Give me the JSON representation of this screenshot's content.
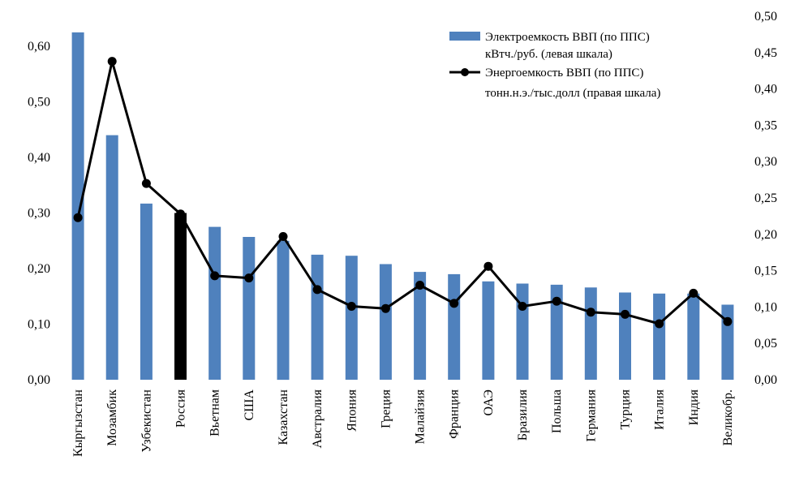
{
  "chart_data": {
    "type": "bar+line",
    "title": "",
    "categories": [
      "Кыргызстан",
      "Мозамбик",
      "Узбекистан",
      "Россия",
      "Вьетнам",
      "США",
      "Казахстан",
      "Австралия",
      "Япония",
      "Греция",
      "Малайзия",
      "Франция",
      "ОАЭ",
      "Бразилия",
      "Польша",
      "Германия",
      "Турция",
      "Италия",
      "Индия",
      "Великобр."
    ],
    "highlight_category": "Россия",
    "left_axis": {
      "ylim": [
        0,
        0.6
      ],
      "ticks": [
        "0,00",
        "0,10",
        "0,20",
        "0,30",
        "0,40",
        "0,50",
        "0,60"
      ]
    },
    "right_axis": {
      "ylim": [
        0,
        0.5
      ],
      "ticks": [
        "0,00",
        "0,05",
        "0,10",
        "0,15",
        "0,20",
        "0,25",
        "0,30",
        "0,35",
        "0,40",
        "0,45",
        "0,50"
      ]
    },
    "series": [
      {
        "name": "Электроемкость ВВП (по ППС) кВтч./руб. (левая шкала)",
        "type": "bar",
        "axis": "left",
        "color": "#4f81bd",
        "highlight_color": "#000000",
        "values": [
          0.625,
          0.44,
          0.317,
          0.3,
          0.275,
          0.257,
          0.25,
          0.225,
          0.223,
          0.208,
          0.194,
          0.19,
          0.177,
          0.173,
          0.171,
          0.166,
          0.157,
          0.155,
          0.155,
          0.135
        ]
      },
      {
        "name": "Энергоемкость ВВП (по ППС) тонн.н.э./тыс.долл (правая шкала)",
        "type": "line",
        "axis": "right",
        "color": "#000000",
        "values": [
          0.223,
          0.438,
          0.27,
          0.228,
          0.143,
          0.14,
          0.197,
          0.124,
          0.101,
          0.098,
          0.13,
          0.105,
          0.156,
          0.101,
          0.108,
          0.093,
          0.09,
          0.077,
          0.119,
          0.08
        ]
      }
    ],
    "legend": {
      "position": "top-right",
      "bar_line1": "Электроемкость ВВП (по ППС)",
      "bar_line2": "кВтч./руб. (левая шкала)",
      "line_line1": "Энергоемкость ВВП (по ППС)",
      "line_line2": "тонн.н.э./тыс.долл (правая шкала)"
    },
    "grid": false
  }
}
